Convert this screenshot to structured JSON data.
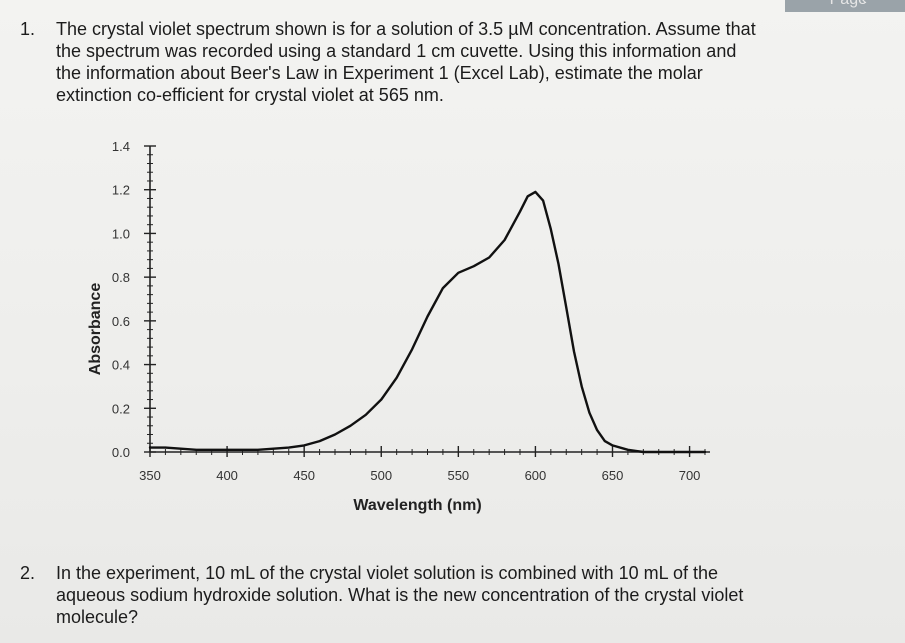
{
  "page": {
    "corner_label": "Page",
    "corner_icon": "chevron-left-icon"
  },
  "questions": [
    {
      "number": "1.",
      "text": "The crystal violet spectrum shown is for a solution of 3.5 µM concentration. Assume that\nthe spectrum was recorded using a standard 1 cm cuvette. Using this information and\nthe information about Beer's Law in Experiment 1 (Excel Lab), estimate the molar\nextinction co-efficient for crystal violet at 565 nm."
    },
    {
      "number": "2.",
      "text": "In the experiment, 10 mL of the crystal violet solution is combined with 10 mL of the\naqueous sodium hydroxide solution. What is the new concentration of the crystal violet\nmolecule?"
    }
  ],
  "chart_data": {
    "type": "line",
    "xlabel": "Wavelength (nm)",
    "ylabel": "Absorbance",
    "xlim": [
      350,
      710
    ],
    "ylim": [
      0,
      1.4
    ],
    "xticks": [
      "350",
      "400",
      "450",
      "500",
      "550",
      "600",
      "650",
      "700"
    ],
    "yticks": [
      "0.0",
      "0.2",
      "0.4",
      "0.6",
      "0.8",
      "1.0",
      "1.2",
      "1.4"
    ],
    "grid": false,
    "series": [
      {
        "x": [
          350,
          360,
          380,
          400,
          420,
          440,
          450,
          460,
          470,
          480,
          490,
          500,
          510,
          520,
          530,
          540,
          550,
          560,
          570,
          580,
          590,
          595,
          600,
          605,
          610,
          615,
          620,
          625,
          630,
          635,
          640,
          645,
          650,
          660,
          670,
          680,
          690,
          700,
          710
        ],
        "y": [
          0.02,
          0.02,
          0.01,
          0.01,
          0.01,
          0.02,
          0.03,
          0.05,
          0.08,
          0.12,
          0.17,
          0.24,
          0.34,
          0.47,
          0.62,
          0.75,
          0.82,
          0.85,
          0.89,
          0.97,
          1.1,
          1.17,
          1.19,
          1.15,
          1.02,
          0.86,
          0.66,
          0.46,
          0.3,
          0.18,
          0.1,
          0.05,
          0.03,
          0.01,
          0.0,
          0.0,
          0.0,
          0.0,
          0.0
        ]
      }
    ]
  }
}
